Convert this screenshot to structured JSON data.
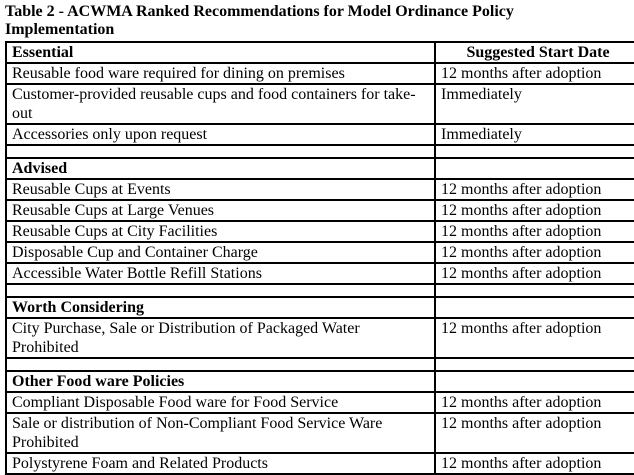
{
  "title": "Table 2 - ACWMA Ranked Recommendations for Model Ordinance Policy Implementation",
  "table": {
    "columns": [
      "Essential",
      "Suggested Start Date"
    ],
    "rows": [
      {
        "type": "item",
        "policy": "Reusable food ware required for dining on premises",
        "start": "12 months after adoption"
      },
      {
        "type": "item",
        "policy": "Customer-provided reusable cups and food containers for take-out",
        "start": "Immediately"
      },
      {
        "type": "item",
        "policy": "Accessories only upon request",
        "start": "Immediately"
      },
      {
        "type": "empty",
        "policy": "",
        "start": ""
      },
      {
        "type": "section",
        "policy": "Advised",
        "start": ""
      },
      {
        "type": "item",
        "policy": "Reusable Cups at Events",
        "start": "12 months after adoption"
      },
      {
        "type": "item",
        "policy": "Reusable Cups at Large Venues",
        "start": "12 months after adoption"
      },
      {
        "type": "item",
        "policy": "Reusable Cups at City Facilities",
        "start": "12 months after adoption"
      },
      {
        "type": "item",
        "policy": "Disposable Cup and Container Charge",
        "start": "12 months after adoption"
      },
      {
        "type": "item",
        "policy": "Accessible Water Bottle Refill Stations",
        "start": "12 months after adoption"
      },
      {
        "type": "empty",
        "policy": "",
        "start": ""
      },
      {
        "type": "section",
        "policy": "Worth Considering",
        "start": ""
      },
      {
        "type": "item",
        "policy": "City Purchase, Sale or Distribution of Packaged Water Prohibited",
        "start": "12 months after adoption"
      },
      {
        "type": "empty",
        "policy": "",
        "start": ""
      },
      {
        "type": "section",
        "policy": "Other Food ware Policies",
        "start": ""
      },
      {
        "type": "item",
        "policy": "Compliant Disposable Food ware for Food Service",
        "start": "12 months after adoption"
      },
      {
        "type": "item",
        "policy": "Sale or distribution of Non-Compliant Food Service Ware Prohibited",
        "start": "12 months after adoption"
      },
      {
        "type": "item",
        "policy": "Polystyrene Foam and Related Products",
        "start": "12 months after adoption"
      }
    ]
  }
}
